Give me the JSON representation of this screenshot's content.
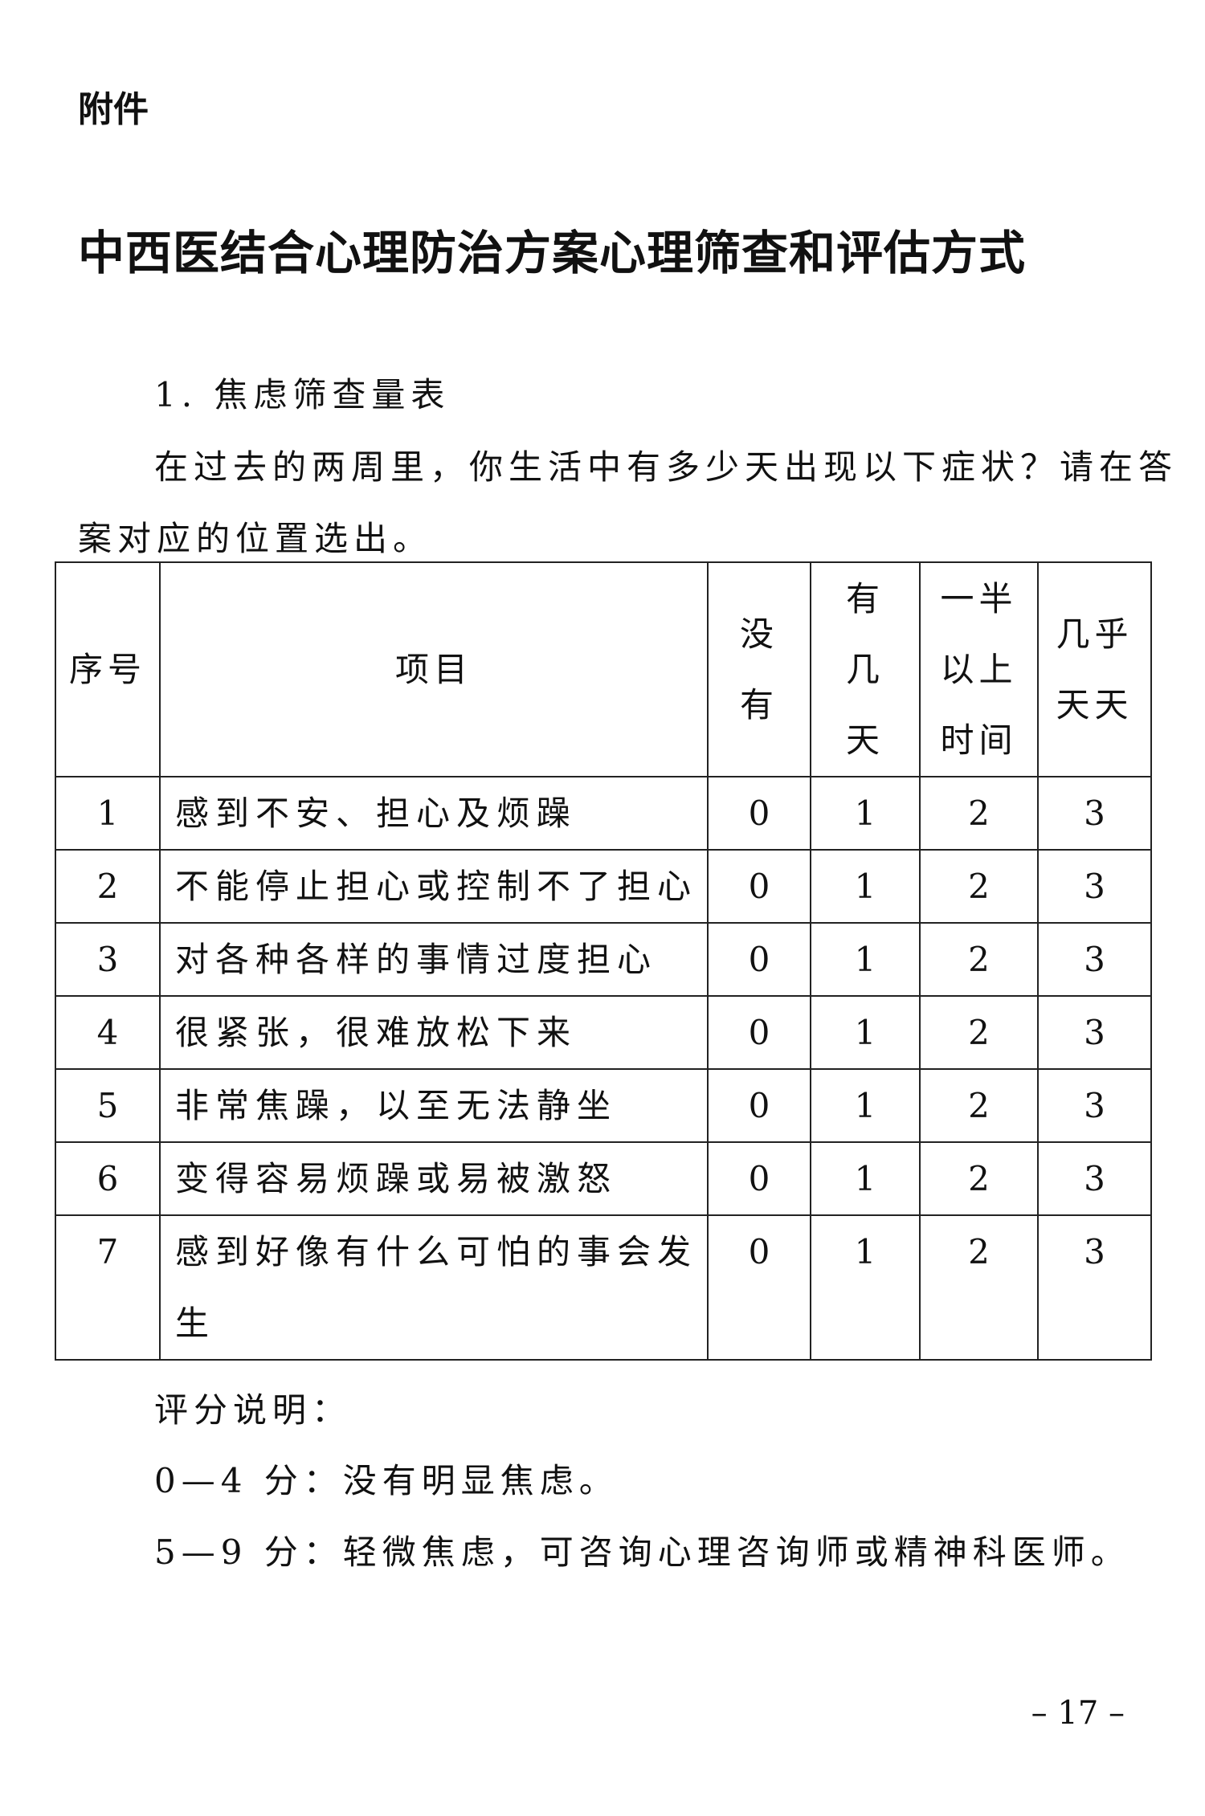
{
  "attachment_label": "附件",
  "title": "中西医结合心理防治方案心理筛查和评估方式",
  "section_heading": "1. 焦虑筛查量表",
  "instruction_line1": "在过去的两周里，你生活中有多少天出现以下症状？请在答",
  "instruction_line2": "案对应的位置选出。",
  "table": {
    "headers": [
      "序号",
      "项目",
      "没\n有",
      "有\n几\n天",
      "一半\n以上\n时间",
      "几乎\n天天"
    ],
    "rows": [
      {
        "no": "1",
        "item": "感到不安、担心及烦躁",
        "v0": "0",
        "v1": "1",
        "v2": "2",
        "v3": "3"
      },
      {
        "no": "2",
        "item": "不能停止担心或控制不了担心",
        "v0": "0",
        "v1": "1",
        "v2": "2",
        "v3": "3"
      },
      {
        "no": "3",
        "item": "对各种各样的事情过度担心",
        "v0": "0",
        "v1": "1",
        "v2": "2",
        "v3": "3"
      },
      {
        "no": "4",
        "item": "很紧张，很难放松下来",
        "v0": "0",
        "v1": "1",
        "v2": "2",
        "v3": "3"
      },
      {
        "no": "5",
        "item": "非常焦躁，以至无法静坐",
        "v0": "0",
        "v1": "1",
        "v2": "2",
        "v3": "3"
      },
      {
        "no": "6",
        "item": "变得容易烦躁或易被激怒",
        "v0": "0",
        "v1": "1",
        "v2": "2",
        "v3": "3"
      },
      {
        "no": "7",
        "item": "感到好像有什么可怕的事会发生",
        "v0": "0",
        "v1": "1",
        "v2": "2",
        "v3": "3"
      }
    ]
  },
  "scoring_heading": "评分说明：",
  "scoring": [
    "0—4 分：没有明显焦虑。",
    "5—9 分：轻微焦虑，可咨询心理咨询师或精神科医师。"
  ],
  "page_number": "– 17 –"
}
